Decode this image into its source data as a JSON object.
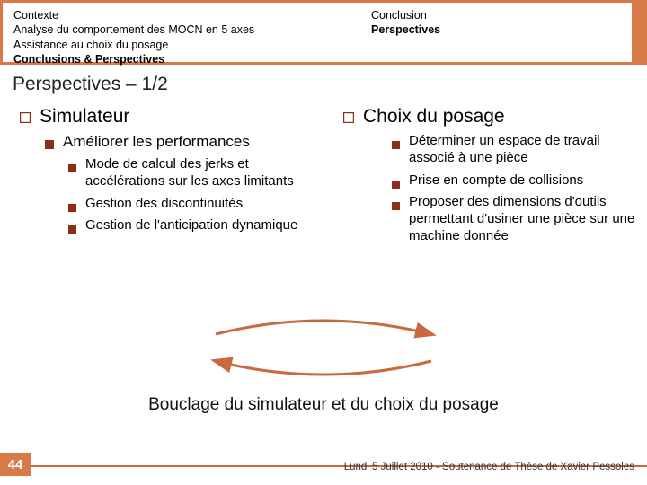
{
  "colors": {
    "accent": "#d77a48",
    "accent_dark": "#c96a3e",
    "bullet_dark": "#8b2e1a",
    "arrow": "#c96a3e",
    "background": "#ffffff",
    "text": "#000000"
  },
  "header": {
    "left": [
      {
        "text": "Contexte",
        "bold": false
      },
      {
        "text": "Analyse du comportement des MOCN en 5 axes",
        "bold": false
      },
      {
        "text": "Assistance au choix du posage",
        "bold": false
      },
      {
        "text": "Conclusions & Perspectives",
        "bold": true
      }
    ],
    "right": [
      {
        "text": "Conclusion",
        "bold": false
      },
      {
        "text": "Perspectives",
        "bold": true
      }
    ]
  },
  "section_title": "Perspectives – 1/2",
  "left_col": {
    "l1": "Simulateur",
    "l2": "Améliorer les performances",
    "l3": [
      "Mode de calcul des jerks et accélérations sur les axes limitants",
      "Gestion des discontinuités",
      "Gestion de l'anticipation dynamique"
    ]
  },
  "right_col": {
    "l1": "Choix du posage",
    "l3": [
      "Déterminer un espace de travail associé à une pièce",
      "Prise en compte de collisions",
      "Proposer des dimensions d'outils  permettant d'usiner une pièce sur une machine donnée"
    ]
  },
  "bottom_line": "Bouclage du simulateur et du choix du posage",
  "page_number": "44",
  "footer_text": "Lundi 5 Juillet 2010 - Soutenance de Thèse de Xavier Pessoles"
}
